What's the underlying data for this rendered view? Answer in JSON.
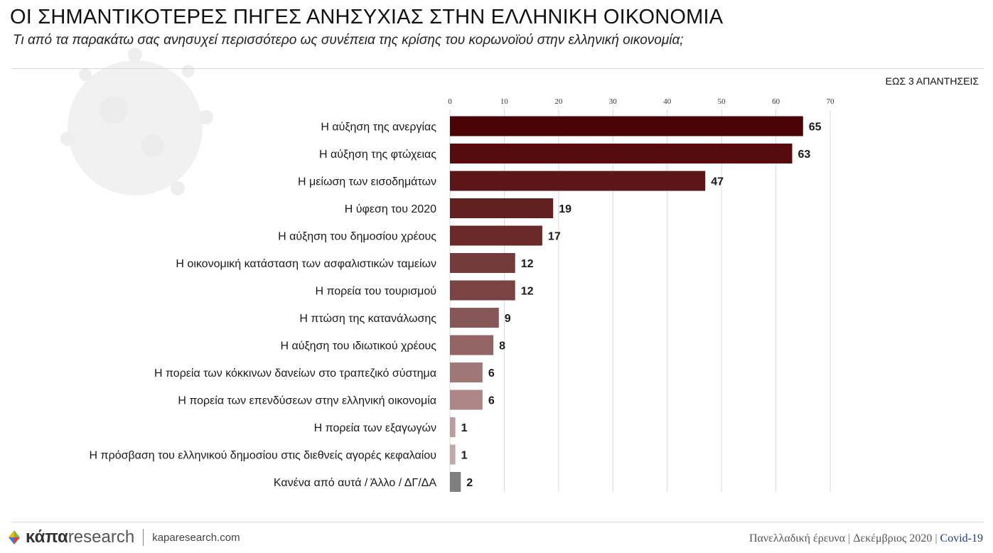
{
  "header": {
    "title": "ΟΙ ΣΗΜΑΝΤΙΚΟΤΕΡΕΣ ΠΗΓΕΣ ΑΝΗΣΥΧΙΑΣ ΣΤΗΝ ΕΛΛΗΝΙΚΗ ΟΙΚΟΝΟΜΙΑ",
    "subtitle": "Τι από τα παρακάτω σας ανησυχεί περισσότερο ως συνέπεια της κρίσης του κορωνοϊού στην ελληνική οικονομία;",
    "note": "ΕΩΣ 3 ΑΠΑΝΤΗΣΕΙΣ"
  },
  "chart_data": {
    "type": "bar",
    "orientation": "horizontal",
    "title": "ΟΙ ΣΗΜΑΝΤΙΚΟΤΕΡΕΣ ΠΗΓΕΣ ΑΝΗΣΥΧΙΑΣ ΣΤΗΝ ΕΛΛΗΝΙΚΗ ΟΙΚΟΝΟΜΙΑ",
    "xlim": [
      0,
      70
    ],
    "ticks": [
      0,
      10,
      20,
      30,
      40,
      50,
      60,
      70
    ],
    "grid": true,
    "categories": [
      "Η αύξηση της ανεργίας",
      "Η αύξηση της φτώχειας",
      "Η μείωση των εισοδημάτων",
      "Η ύφεση του 2020",
      "Η αύξηση του δημοσίου χρέους",
      "Η οικονομική κατάσταση των ασφαλιστικών ταμείων",
      "Η πορεία του τουρισμού",
      "Η πτώση της κατανάλωσης",
      "Η αύξηση του ιδιωτικού χρέους",
      "Η πορεία των κόκκινων δανείων στο τραπεζικό σύστημα",
      "Η πορεία των επενδύσεων στην ελληνική οικονομία",
      "Η πορεία των εξαγωγών",
      "Η πρόσβαση του ελληνικού δημοσίου στις διεθνείς αγορές κεφαλαίου",
      "Κανένα από αυτά / Άλλο / ΔΓ/ΔΑ"
    ],
    "values": [
      65,
      63,
      47,
      19,
      17,
      12,
      12,
      9,
      8,
      6,
      6,
      1,
      1,
      2
    ],
    "colors": [
      "#4a0406",
      "#560b0e",
      "#5d1618",
      "#622021",
      "#6b2a2a",
      "#733b3b",
      "#7b4444",
      "#875656",
      "#936464",
      "#a07777",
      "#ad8787",
      "#bb9c9c",
      "#c3a8a8",
      "#7f7f7f"
    ]
  },
  "footer": {
    "logo_bold": "κάπα",
    "logo_light": "research",
    "url": "kaparesearch.com",
    "survey": "Πανελλαδική έρευνα",
    "date": "Δεκέμβριος 2020",
    "tag": "Covid-19"
  }
}
